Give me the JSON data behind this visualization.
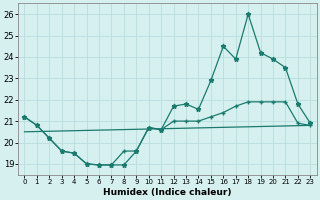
{
  "xlabel": "Humidex (Indice chaleur)",
  "background_color": "#d6f0ef",
  "grid_color": "#b8dede",
  "line_color": "#1a7a6e",
  "xlim": [
    -0.5,
    23.5
  ],
  "ylim": [
    18.5,
    26.5
  ],
  "yticks": [
    19,
    20,
    21,
    22,
    23,
    24,
    25,
    26
  ],
  "xticks": [
    0,
    1,
    2,
    3,
    4,
    5,
    6,
    7,
    8,
    9,
    10,
    11,
    12,
    13,
    14,
    15,
    16,
    17,
    18,
    19,
    20,
    21,
    22,
    23
  ],
  "series_main_x": [
    0,
    1,
    2,
    3,
    4,
    5,
    6,
    7,
    8,
    9,
    10,
    11,
    12,
    13,
    14,
    15,
    16,
    17,
    18,
    19,
    20,
    21,
    22,
    23
  ],
  "series_main_y": [
    21.2,
    20.8,
    20.2,
    19.6,
    19.5,
    19.0,
    18.95,
    18.95,
    18.95,
    19.6,
    20.7,
    20.6,
    21.7,
    21.8,
    21.55,
    22.9,
    24.5,
    23.9,
    26.0,
    24.2,
    23.9,
    23.5,
    21.8,
    20.9
  ],
  "series_lower_x": [
    0,
    1,
    2,
    3,
    4,
    5,
    6,
    7,
    8,
    9,
    10,
    11,
    12,
    13,
    14,
    15,
    16,
    17,
    18,
    19,
    20,
    21,
    22,
    23
  ],
  "series_lower_y": [
    21.2,
    20.8,
    20.2,
    19.6,
    19.5,
    19.0,
    18.95,
    18.95,
    19.6,
    19.6,
    20.7,
    20.6,
    21.0,
    21.0,
    21.0,
    21.2,
    21.4,
    21.7,
    21.9,
    21.9,
    21.9,
    21.9,
    20.9,
    20.8
  ],
  "series_trend_x": [
    0,
    23
  ],
  "series_trend_y": [
    20.5,
    20.8
  ]
}
